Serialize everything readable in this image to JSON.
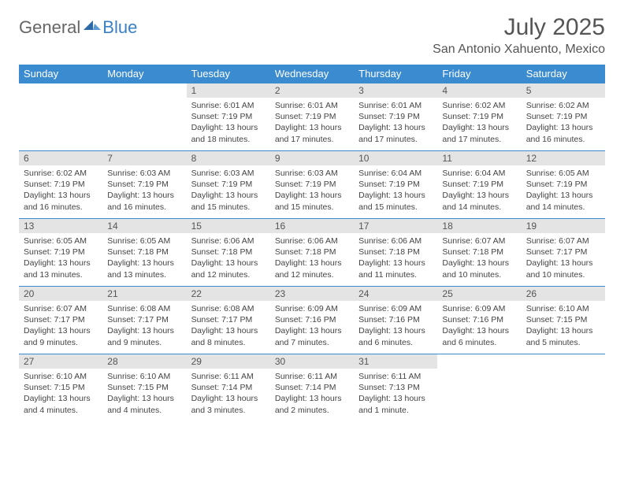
{
  "brand": {
    "part1": "General",
    "part2": "Blue"
  },
  "title": "July 2025",
  "location": "San Antonio Xahuento, Mexico",
  "colors": {
    "header_bg": "#3b8bd0",
    "header_fg": "#ffffff",
    "daynum_bg": "#e4e4e4",
    "border": "#3b8bd0",
    "brand_blue": "#3b7fc4",
    "text": "#444444",
    "bg": "#ffffff"
  },
  "weekdays": [
    "Sunday",
    "Monday",
    "Tuesday",
    "Wednesday",
    "Thursday",
    "Friday",
    "Saturday"
  ],
  "first_weekday_index": 2,
  "days": [
    {
      "n": 1,
      "sunrise": "6:01 AM",
      "sunset": "7:19 PM",
      "daylight": "13 hours and 18 minutes."
    },
    {
      "n": 2,
      "sunrise": "6:01 AM",
      "sunset": "7:19 PM",
      "daylight": "13 hours and 17 minutes."
    },
    {
      "n": 3,
      "sunrise": "6:01 AM",
      "sunset": "7:19 PM",
      "daylight": "13 hours and 17 minutes."
    },
    {
      "n": 4,
      "sunrise": "6:02 AM",
      "sunset": "7:19 PM",
      "daylight": "13 hours and 17 minutes."
    },
    {
      "n": 5,
      "sunrise": "6:02 AM",
      "sunset": "7:19 PM",
      "daylight": "13 hours and 16 minutes."
    },
    {
      "n": 6,
      "sunrise": "6:02 AM",
      "sunset": "7:19 PM",
      "daylight": "13 hours and 16 minutes."
    },
    {
      "n": 7,
      "sunrise": "6:03 AM",
      "sunset": "7:19 PM",
      "daylight": "13 hours and 16 minutes."
    },
    {
      "n": 8,
      "sunrise": "6:03 AM",
      "sunset": "7:19 PM",
      "daylight": "13 hours and 15 minutes."
    },
    {
      "n": 9,
      "sunrise": "6:03 AM",
      "sunset": "7:19 PM",
      "daylight": "13 hours and 15 minutes."
    },
    {
      "n": 10,
      "sunrise": "6:04 AM",
      "sunset": "7:19 PM",
      "daylight": "13 hours and 15 minutes."
    },
    {
      "n": 11,
      "sunrise": "6:04 AM",
      "sunset": "7:19 PM",
      "daylight": "13 hours and 14 minutes."
    },
    {
      "n": 12,
      "sunrise": "6:05 AM",
      "sunset": "7:19 PM",
      "daylight": "13 hours and 14 minutes."
    },
    {
      "n": 13,
      "sunrise": "6:05 AM",
      "sunset": "7:19 PM",
      "daylight": "13 hours and 13 minutes."
    },
    {
      "n": 14,
      "sunrise": "6:05 AM",
      "sunset": "7:18 PM",
      "daylight": "13 hours and 13 minutes."
    },
    {
      "n": 15,
      "sunrise": "6:06 AM",
      "sunset": "7:18 PM",
      "daylight": "13 hours and 12 minutes."
    },
    {
      "n": 16,
      "sunrise": "6:06 AM",
      "sunset": "7:18 PM",
      "daylight": "13 hours and 12 minutes."
    },
    {
      "n": 17,
      "sunrise": "6:06 AM",
      "sunset": "7:18 PM",
      "daylight": "13 hours and 11 minutes."
    },
    {
      "n": 18,
      "sunrise": "6:07 AM",
      "sunset": "7:18 PM",
      "daylight": "13 hours and 10 minutes."
    },
    {
      "n": 19,
      "sunrise": "6:07 AM",
      "sunset": "7:17 PM",
      "daylight": "13 hours and 10 minutes."
    },
    {
      "n": 20,
      "sunrise": "6:07 AM",
      "sunset": "7:17 PM",
      "daylight": "13 hours and 9 minutes."
    },
    {
      "n": 21,
      "sunrise": "6:08 AM",
      "sunset": "7:17 PM",
      "daylight": "13 hours and 9 minutes."
    },
    {
      "n": 22,
      "sunrise": "6:08 AM",
      "sunset": "7:17 PM",
      "daylight": "13 hours and 8 minutes."
    },
    {
      "n": 23,
      "sunrise": "6:09 AM",
      "sunset": "7:16 PM",
      "daylight": "13 hours and 7 minutes."
    },
    {
      "n": 24,
      "sunrise": "6:09 AM",
      "sunset": "7:16 PM",
      "daylight": "13 hours and 6 minutes."
    },
    {
      "n": 25,
      "sunrise": "6:09 AM",
      "sunset": "7:16 PM",
      "daylight": "13 hours and 6 minutes."
    },
    {
      "n": 26,
      "sunrise": "6:10 AM",
      "sunset": "7:15 PM",
      "daylight": "13 hours and 5 minutes."
    },
    {
      "n": 27,
      "sunrise": "6:10 AM",
      "sunset": "7:15 PM",
      "daylight": "13 hours and 4 minutes."
    },
    {
      "n": 28,
      "sunrise": "6:10 AM",
      "sunset": "7:15 PM",
      "daylight": "13 hours and 4 minutes."
    },
    {
      "n": 29,
      "sunrise": "6:11 AM",
      "sunset": "7:14 PM",
      "daylight": "13 hours and 3 minutes."
    },
    {
      "n": 30,
      "sunrise": "6:11 AM",
      "sunset": "7:14 PM",
      "daylight": "13 hours and 2 minutes."
    },
    {
      "n": 31,
      "sunrise": "6:11 AM",
      "sunset": "7:13 PM",
      "daylight": "13 hours and 1 minute."
    }
  ],
  "labels": {
    "sunrise": "Sunrise:",
    "sunset": "Sunset:",
    "daylight": "Daylight:"
  }
}
